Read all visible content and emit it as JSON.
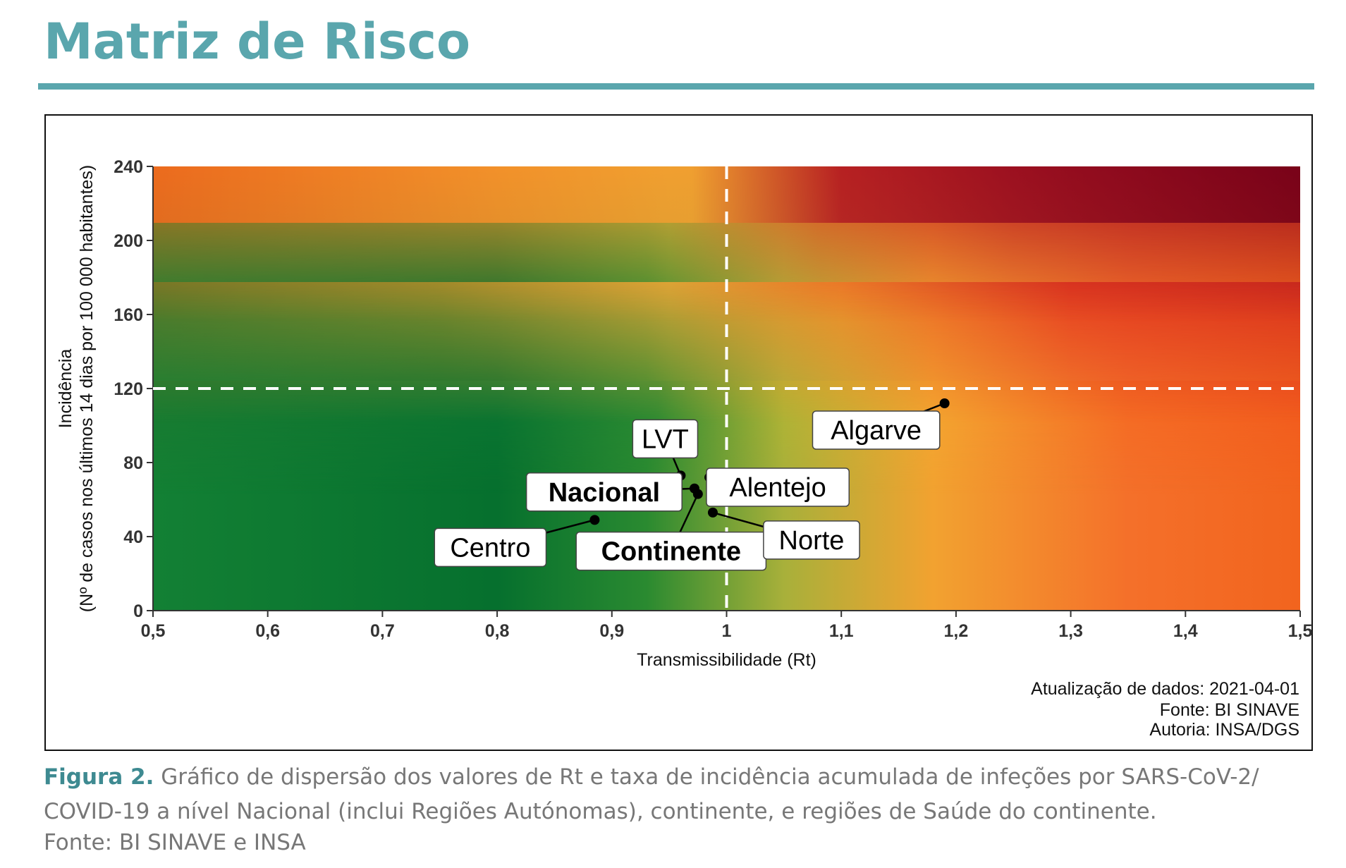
{
  "page": {
    "title": "Matriz de Risco",
    "title_color": "#5aa6ad",
    "caption_label": "Figura 2.",
    "caption_text": " Gráfico de dispersão dos valores de Rt e taxa de incidência acumulada de infeções por SARS-CoV-2/ COVID-19 a nível Nacional (inclui Regiões Autónomas), continente, e regiões de Saúde do continente.",
    "source": "Fonte: BI SINAVE e INSA"
  },
  "chart_data": {
    "type": "scatter",
    "title": "",
    "xlabel": "Transmissibilidade (Rt)",
    "ylabel_line1": "Incidência",
    "ylabel_line2": "(Nº de casos nos últimos 14 dias por 100 000 habitantes)",
    "xlim": [
      0.5,
      1.5
    ],
    "ylim": [
      0,
      240
    ],
    "x_ticks": [
      0.5,
      0.6,
      0.7,
      0.8,
      0.9,
      1.0,
      1.1,
      1.2,
      1.3,
      1.4,
      1.5
    ],
    "x_tick_labels": [
      "0,5",
      "0,6",
      "0,7",
      "0,8",
      "0,9",
      "1",
      "1,1",
      "1,2",
      "1,3",
      "1,4",
      "1,5"
    ],
    "y_ticks": [
      0,
      40,
      80,
      120,
      160,
      200,
      240
    ],
    "y_tick_labels": [
      "0",
      "40",
      "80",
      "120",
      "160",
      "200",
      "240"
    ],
    "threshold_x": 1.0,
    "threshold_y": 120,
    "grid": false,
    "background": "risk gradient: green (low Rt, low incidence) to dark red (high Rt, high incidence)",
    "colors": {
      "low": "#0a7a32",
      "mid": "#f0a030",
      "orange": "#f26a1e",
      "high": "#7d0018"
    },
    "points": [
      {
        "label": "Algarve",
        "x": 1.19,
        "y": 112,
        "bold": false
      },
      {
        "label": "LVT",
        "x": 0.96,
        "y": 73,
        "bold": false
      },
      {
        "label": "Alentejo",
        "x": 0.985,
        "y": 72,
        "bold": false
      },
      {
        "label": "Nacional",
        "x": 0.972,
        "y": 66,
        "bold": true
      },
      {
        "label": "Continente",
        "x": 0.975,
        "y": 63,
        "bold": true
      },
      {
        "label": "Norte",
        "x": 0.988,
        "y": 53,
        "bold": false
      },
      {
        "label": "Centro",
        "x": 0.885,
        "y": 49,
        "bold": false
      }
    ],
    "notes": [
      "Atualização de dados: 2021-04-01",
      "Fonte: BI SINAVE",
      "Autoria: INSA/DGS"
    ]
  }
}
